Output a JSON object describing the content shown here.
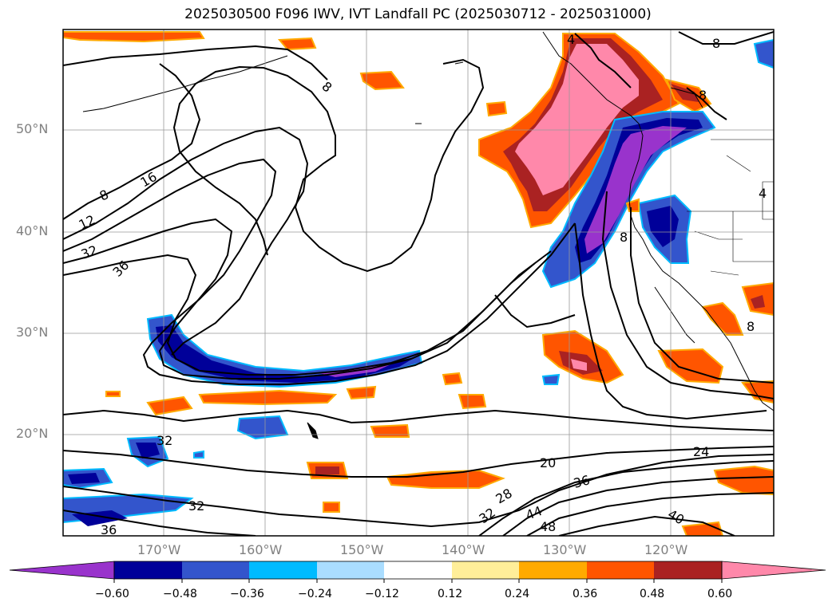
{
  "title": "2025030500 F096 IWV, IVT Landfall PC (2025030712 - 2025031000)",
  "lat_labels": [
    "50°N",
    "40°N",
    "30°N",
    "20°N"
  ],
  "lon_labels": [
    "170°W",
    "160°W",
    "150°W",
    "140°W",
    "130°W",
    "120°W"
  ],
  "contour_labels": [
    "8",
    "16",
    "8",
    "12",
    "32",
    "36",
    "8",
    "8",
    "8",
    "32",
    "32",
    "36",
    "20",
    "24",
    "36",
    "28",
    "32",
    "44",
    "48",
    "40",
    "8",
    "4",
    "4"
  ],
  "colorbar": {
    "colors": [
      "#9933cc",
      "#000099",
      "#3355cc",
      "#00bbff",
      "#aaddff",
      "#ffffff",
      "#ffee99",
      "#ffaa00",
      "#ff5500",
      "#aa2222",
      "#ff88aa"
    ],
    "ticks": [
      "−0.60",
      "−0.48",
      "−0.36",
      "−0.24",
      "−0.12",
      "0.12",
      "0.24",
      "0.36",
      "0.48",
      "0.60"
    ],
    "extend": "both"
  }
}
